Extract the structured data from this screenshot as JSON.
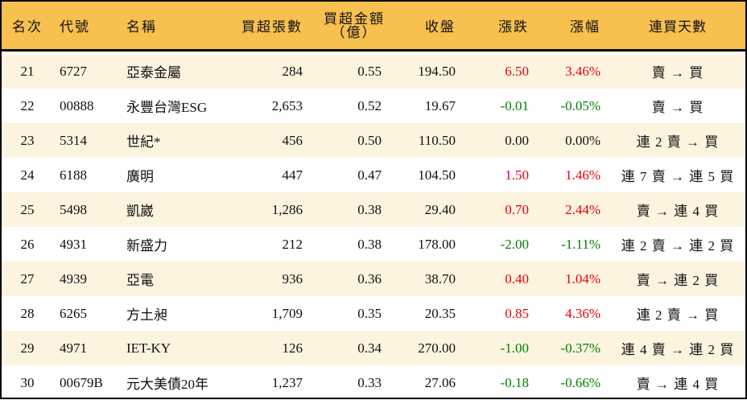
{
  "colors": {
    "header_bg": "#F7C04F",
    "odd_row_bg": "#FDF4E0",
    "up": "#E8000B",
    "down": "#008000"
  },
  "header": {
    "rank": "名次",
    "code": "代號",
    "name": "名稱",
    "lots": "買超張數",
    "amount": "買超金額",
    "amount_unit": "（億）",
    "close": "收盤",
    "change": "漲跌",
    "pct": "漲幅",
    "days": "連買天數"
  },
  "rows": [
    {
      "rank": "21",
      "code": "6727",
      "name": "亞泰金屬",
      "lots": "284",
      "amount": "0.55",
      "close": "194.50",
      "change": "6.50",
      "pct": "3.46%",
      "days": "賣 → 買",
      "dir": "up"
    },
    {
      "rank": "22",
      "code": "00888",
      "name": "永豐台灣ESG",
      "lots": "2,653",
      "amount": "0.52",
      "close": "19.67",
      "change": "-0.01",
      "pct": "-0.05%",
      "days": "賣 → 買",
      "dir": "down"
    },
    {
      "rank": "23",
      "code": "5314",
      "name": "世紀*",
      "lots": "456",
      "amount": "0.50",
      "close": "110.50",
      "change": "0.00",
      "pct": "0.00%",
      "days": "連 2 賣 → 買",
      "dir": "flat"
    },
    {
      "rank": "24",
      "code": "6188",
      "name": "廣明",
      "lots": "447",
      "amount": "0.47",
      "close": "104.50",
      "change": "1.50",
      "pct": "1.46%",
      "days": "連 7 賣 → 連 5 買",
      "dir": "up"
    },
    {
      "rank": "25",
      "code": "5498",
      "name": "凱崴",
      "lots": "1,286",
      "amount": "0.38",
      "close": "29.40",
      "change": "0.70",
      "pct": "2.44%",
      "days": "賣 → 連 4 買",
      "dir": "up"
    },
    {
      "rank": "26",
      "code": "4931",
      "name": "新盛力",
      "lots": "212",
      "amount": "0.38",
      "close": "178.00",
      "change": "-2.00",
      "pct": "-1.11%",
      "days": "連 2 賣 → 連 2 買",
      "dir": "down"
    },
    {
      "rank": "27",
      "code": "4939",
      "name": "亞電",
      "lots": "936",
      "amount": "0.36",
      "close": "38.70",
      "change": "0.40",
      "pct": "1.04%",
      "days": "賣 → 連 2 買",
      "dir": "up"
    },
    {
      "rank": "28",
      "code": "6265",
      "name": "方土昶",
      "lots": "1,709",
      "amount": "0.35",
      "close": "20.35",
      "change": "0.85",
      "pct": "4.36%",
      "days": "連 2 賣 → 買",
      "dir": "up"
    },
    {
      "rank": "29",
      "code": "4971",
      "name": "IET-KY",
      "lots": "126",
      "amount": "0.34",
      "close": "270.00",
      "change": "-1.00",
      "pct": "-0.37%",
      "days": "連 4 賣 → 連 2 買",
      "dir": "down"
    },
    {
      "rank": "30",
      "code": "00679B",
      "name": "元大美債20年",
      "lots": "1,237",
      "amount": "0.33",
      "close": "27.06",
      "change": "-0.18",
      "pct": "-0.66%",
      "days": "賣 → 連 4 買",
      "dir": "down"
    }
  ]
}
